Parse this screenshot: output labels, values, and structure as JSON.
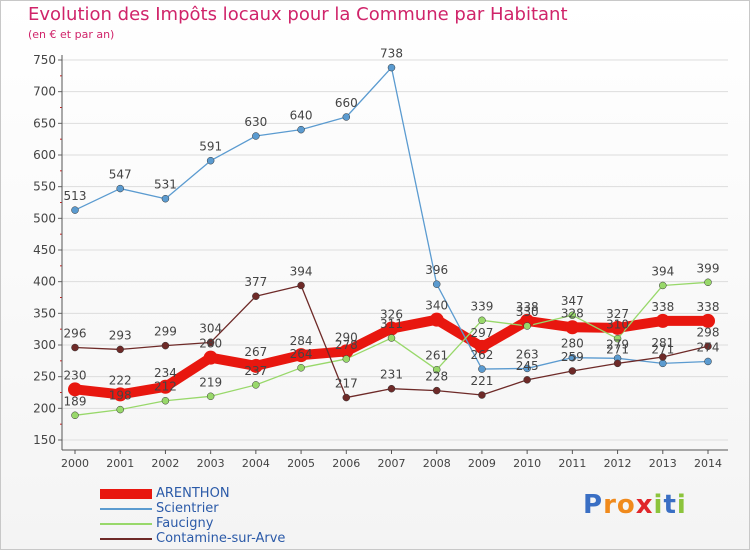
{
  "header": {
    "title": "Evolution des Impôts locaux pour la Commune par Habitant",
    "subtitle": "(en € et par an)"
  },
  "colors": {
    "title": "#d0246a",
    "axis": "#555555",
    "label": "#444444",
    "legend_text": "#2b5aa8"
  },
  "logo": {
    "letters": [
      {
        "char": "P",
        "color": "#3a6fc4"
      },
      {
        "char": "r",
        "color": "#f08a1c"
      },
      {
        "char": "o",
        "color": "#f08a1c"
      },
      {
        "char": "x",
        "color": "#e0262a"
      },
      {
        "char": "i",
        "color": "#8cc43c"
      },
      {
        "char": "t",
        "color": "#3a6fc4"
      },
      {
        "char": "i",
        "color": "#8cc43c"
      }
    ]
  },
  "chart_data": {
    "type": "line",
    "title": "Evolution des Impôts locaux pour la Commune par Habitant",
    "subtitle": "(en € et par an)",
    "xlabel": "",
    "ylabel": "",
    "categories": [
      "2000",
      "2001",
      "2002",
      "2003",
      "2004",
      "2005",
      "2006",
      "2007",
      "2008",
      "2009",
      "2010",
      "2011",
      "2012",
      "2013",
      "2014"
    ],
    "ylim": [
      150,
      750
    ],
    "yticks": [
      150,
      200,
      250,
      300,
      350,
      400,
      450,
      500,
      550,
      600,
      650,
      700,
      750
    ],
    "grid": true,
    "legend_position": "bottom-left",
    "series": [
      {
        "name": "ARENTHON",
        "color": "#e8170f",
        "values": [
          230,
          222,
          234,
          280,
          267,
          284,
          290,
          326,
          340,
          297,
          338,
          328,
          327,
          338,
          338
        ]
      },
      {
        "name": "Scientrier",
        "color": "#5b9bd0",
        "values": [
          513,
          547,
          531,
          591,
          630,
          640,
          660,
          738,
          396,
          262,
          263,
          280,
          279,
          271,
          274
        ]
      },
      {
        "name": "Faucigny",
        "color": "#98d86a",
        "values": [
          189,
          198,
          212,
          219,
          237,
          264,
          278,
          311,
          261,
          339,
          330,
          347,
          310,
          394,
          399
        ]
      },
      {
        "name": "Contamine-sur-Arve",
        "color": "#6e2a28",
        "values": [
          296,
          293,
          299,
          304,
          377,
          394,
          217,
          231,
          228,
          221,
          245,
          259,
          271,
          281,
          298
        ]
      }
    ],
    "data_labels": [
      [
        230,
        222,
        234,
        280,
        267,
        284,
        290,
        326,
        340,
        297,
        338,
        328,
        327,
        338,
        338
      ],
      [
        513,
        547,
        531,
        591,
        630,
        640,
        660,
        738,
        396,
        262,
        263,
        280,
        279,
        271,
        274
      ],
      [
        189,
        198,
        212,
        219,
        237,
        264,
        278,
        311,
        261,
        339,
        330,
        347,
        310,
        394,
        399
      ],
      [
        296,
        293,
        299,
        304,
        377,
        394,
        217,
        231,
        228,
        221,
        245,
        259,
        271,
        281,
        298
      ]
    ]
  }
}
